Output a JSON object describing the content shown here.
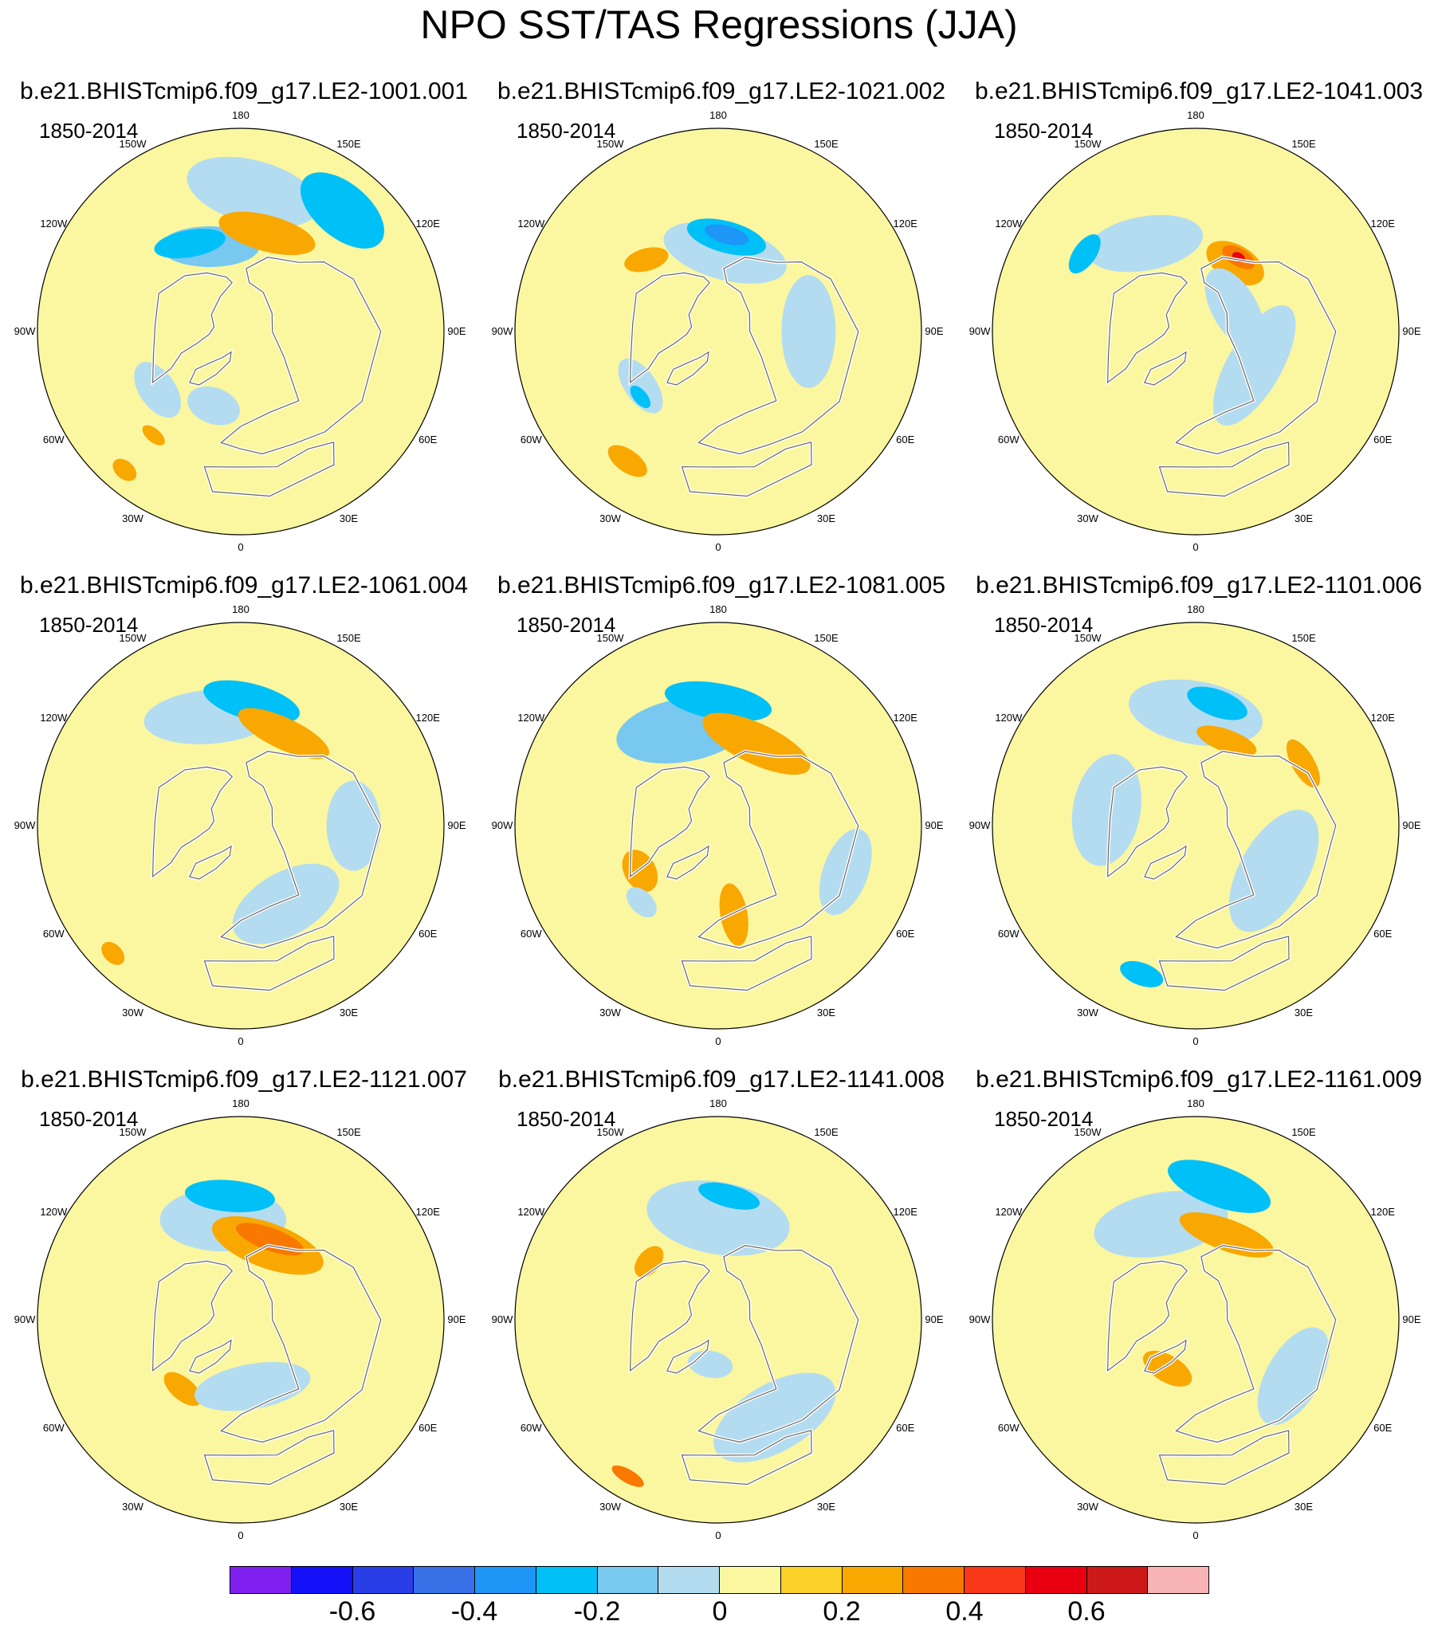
{
  "figure": {
    "title": "NPO SST/TAS Regressions (JJA)"
  },
  "panels": [
    {
      "title": "b.e21.BHISTcmip6.f09_g17.LE2-1001.001",
      "period": "1850-2014",
      "anomalies": [
        {
          "lon": 175,
          "colat": 62,
          "rx": 30,
          "ry": 14,
          "rot": 10,
          "value": -0.1
        },
        {
          "lon": 140,
          "colat": 70,
          "rx": 22,
          "ry": 12,
          "rot": 0,
          "value": -0.25
        },
        {
          "lon": -160,
          "colat": 40,
          "rx": 22,
          "ry": 9,
          "rot": 20,
          "value": -0.2
        },
        {
          "lon": -150,
          "colat": 45,
          "rx": 16,
          "ry": 6,
          "rot": 20,
          "value": -0.3
        },
        {
          "lon": 165,
          "colat": 45,
          "rx": 22,
          "ry": 8,
          "rot": 0,
          "value": 0.2
        },
        {
          "lon": -55,
          "colat": 45,
          "rx": 14,
          "ry": 8,
          "rot": 0,
          "value": -0.1
        },
        {
          "lon": -40,
          "colat": 60,
          "rx": 6,
          "ry": 3,
          "rot": 0,
          "value": 0.2
        },
        {
          "lon": -20,
          "colat": 35,
          "rx": 12,
          "ry": 8,
          "rot": 0,
          "value": -0.1
        },
        {
          "lon": -40,
          "colat": 80,
          "rx": 6,
          "ry": 4,
          "rot": 0,
          "value": 0.2
        }
      ]
    },
    {
      "title": "b.e21.BHISTcmip6.f09_g17.LE2-1021.002",
      "period": "1850-2014",
      "anomalies": [
        {
          "lon": 175,
          "colat": 35,
          "rx": 28,
          "ry": 12,
          "rot": 10,
          "value": -0.1
        },
        {
          "lon": 175,
          "colat": 42,
          "rx": 18,
          "ry": 7,
          "rot": 10,
          "value": -0.25
        },
        {
          "lon": 175,
          "colat": 43,
          "rx": 10,
          "ry": 4,
          "rot": 10,
          "value": -0.4
        },
        {
          "lon": -135,
          "colat": 45,
          "rx": 10,
          "ry": 5,
          "rot": 30,
          "value": 0.2
        },
        {
          "lon": -55,
          "colat": 42,
          "rx": 14,
          "ry": 7,
          "rot": 0,
          "value": -0.1
        },
        {
          "lon": -50,
          "colat": 45,
          "rx": 6,
          "ry": 3,
          "rot": 0,
          "value": -0.25
        },
        {
          "lon": 90,
          "colat": 40,
          "rx": 25,
          "ry": 12,
          "rot": 0,
          "value": -0.1
        },
        {
          "lon": -35,
          "colat": 70,
          "rx": 10,
          "ry": 5,
          "rot": 0,
          "value": 0.2
        }
      ]
    },
    {
      "title": "b.e21.BHISTcmip6.f09_g17.LE2-1041.003",
      "period": "1850-2014",
      "anomalies": [
        {
          "lon": -150,
          "colat": 45,
          "rx": 26,
          "ry": 12,
          "rot": 20,
          "value": -0.1
        },
        {
          "lon": -125,
          "colat": 60,
          "rx": 10,
          "ry": 5,
          "rot": 0,
          "value": -0.3
        },
        {
          "lon": 150,
          "colat": 35,
          "rx": 14,
          "ry": 8,
          "rot": 0,
          "value": 0.2
        },
        {
          "lon": 150,
          "colat": 38,
          "rx": 8,
          "ry": 4,
          "rot": 0,
          "value": 0.35
        },
        {
          "lon": 150,
          "colat": 38,
          "rx": 3,
          "ry": 2,
          "rot": 0,
          "value": 0.5
        },
        {
          "lon": 60,
          "colat": 30,
          "rx": 30,
          "ry": 12,
          "rot": 0,
          "value": -0.1
        },
        {
          "lon": 120,
          "colat": 20,
          "rx": 20,
          "ry": 10,
          "rot": 0,
          "value": -0.1
        }
      ]
    },
    {
      "title": "b.e21.BHISTcmip6.f09_g17.LE2-1061.004",
      "period": "1850-2014",
      "anomalies": [
        {
          "lon": -165,
          "colat": 50,
          "rx": 30,
          "ry": 12,
          "rot": 10,
          "value": -0.1
        },
        {
          "lon": 175,
          "colat": 55,
          "rx": 22,
          "ry": 8,
          "rot": 10,
          "value": -0.25
        },
        {
          "lon": 155,
          "colat": 45,
          "rx": 22,
          "ry": 7,
          "rot": 0,
          "value": 0.2
        },
        {
          "lon": 30,
          "colat": 40,
          "rx": 26,
          "ry": 14,
          "rot": 0,
          "value": -0.1
        },
        {
          "lon": 90,
          "colat": 50,
          "rx": 20,
          "ry": 12,
          "rot": 0,
          "value": -0.1
        },
        {
          "lon": -45,
          "colat": 80,
          "rx": 6,
          "ry": 4,
          "rot": 0,
          "value": 0.2
        }
      ]
    },
    {
      "title": "b.e21.BHISTcmip6.f09_g17.LE2-1081.005",
      "period": "1850-2014",
      "anomalies": [
        {
          "lon": -160,
          "colat": 45,
          "rx": 30,
          "ry": 14,
          "rot": 10,
          "value": -0.2
        },
        {
          "lon": 180,
          "colat": 55,
          "rx": 24,
          "ry": 8,
          "rot": 10,
          "value": -0.3
        },
        {
          "lon": 155,
          "colat": 40,
          "rx": 26,
          "ry": 9,
          "rot": 0,
          "value": 0.2
        },
        {
          "lon": -60,
          "colat": 40,
          "rx": 10,
          "ry": 7,
          "rot": 0,
          "value": 0.25
        },
        {
          "lon": -45,
          "colat": 48,
          "rx": 8,
          "ry": 5,
          "rot": 0,
          "value": -0.1
        },
        {
          "lon": 10,
          "colat": 40,
          "rx": 6,
          "ry": 14,
          "rot": 0,
          "value": 0.2
        },
        {
          "lon": 70,
          "colat": 60,
          "rx": 20,
          "ry": 10,
          "rot": 0,
          "value": -0.1
        }
      ]
    },
    {
      "title": "b.e21.BHISTcmip6.f09_g17.LE2-1101.006",
      "period": "1850-2014",
      "anomalies": [
        {
          "lon": 180,
          "colat": 50,
          "rx": 30,
          "ry": 14,
          "rot": 10,
          "value": -0.1
        },
        {
          "lon": 170,
          "colat": 55,
          "rx": 14,
          "ry": 6,
          "rot": 10,
          "value": -0.25
        },
        {
          "lon": 160,
          "colat": 40,
          "rx": 14,
          "ry": 5,
          "rot": 0,
          "value": 0.2
        },
        {
          "lon": 120,
          "colat": 55,
          "rx": 12,
          "ry": 5,
          "rot": 0,
          "value": 0.2
        },
        {
          "lon": -20,
          "colat": 70,
          "rx": 10,
          "ry": 5,
          "rot": 0,
          "value": -0.25
        },
        {
          "lon": 60,
          "colat": 40,
          "rx": 30,
          "ry": 15,
          "rot": 0,
          "value": -0.1
        },
        {
          "lon": -100,
          "colat": 40,
          "rx": 25,
          "ry": 15,
          "rot": 0,
          "value": -0.1
        }
      ]
    },
    {
      "title": "b.e21.BHISTcmip6.f09_g17.LE2-1121.007",
      "period": "1850-2014",
      "anomalies": [
        {
          "lon": -170,
          "colat": 45,
          "rx": 28,
          "ry": 14,
          "rot": 10,
          "value": -0.1
        },
        {
          "lon": -175,
          "colat": 55,
          "rx": 20,
          "ry": 7,
          "rot": 10,
          "value": -0.25
        },
        {
          "lon": 160,
          "colat": 35,
          "rx": 26,
          "ry": 10,
          "rot": 0,
          "value": 0.2
        },
        {
          "lon": 160,
          "colat": 38,
          "rx": 16,
          "ry": 5,
          "rot": 0,
          "value": 0.3
        },
        {
          "lon": -40,
          "colat": 40,
          "rx": 10,
          "ry": 5,
          "rot": 0,
          "value": 0.2
        },
        {
          "lon": 10,
          "colat": 30,
          "rx": 26,
          "ry": 10,
          "rot": 0,
          "value": -0.1
        }
      ]
    },
    {
      "title": "b.e21.BHISTcmip6.f09_g17.LE2-1141.008",
      "period": "1850-2014",
      "anomalies": [
        {
          "lon": 180,
          "colat": 45,
          "rx": 32,
          "ry": 16,
          "rot": 10,
          "value": -0.1
        },
        {
          "lon": 175,
          "colat": 55,
          "rx": 14,
          "ry": 5,
          "rot": 10,
          "value": -0.25
        },
        {
          "lon": -130,
          "colat": 40,
          "rx": 8,
          "ry": 5,
          "rot": 0,
          "value": 0.2
        },
        {
          "lon": 30,
          "colat": 50,
          "rx": 30,
          "ry": 15,
          "rot": 0,
          "value": -0.1
        },
        {
          "lon": -10,
          "colat": 20,
          "rx": 10,
          "ry": 6,
          "rot": 0,
          "value": -0.1
        },
        {
          "lon": -30,
          "colat": 80,
          "rx": 8,
          "ry": 3,
          "rot": 0,
          "value": 0.3
        }
      ]
    },
    {
      "title": "b.e21.BHISTcmip6.f09_g17.LE2-1161.009",
      "period": "1850-2014",
      "anomalies": [
        {
          "lon": -160,
          "colat": 45,
          "rx": 30,
          "ry": 14,
          "rot": 10,
          "value": -0.1
        },
        {
          "lon": 170,
          "colat": 60,
          "rx": 24,
          "ry": 9,
          "rot": 10,
          "value": -0.25
        },
        {
          "lon": 160,
          "colat": 40,
          "rx": 22,
          "ry": 7,
          "rot": 0,
          "value": 0.2
        },
        {
          "lon": 60,
          "colat": 50,
          "rx": 24,
          "ry": 12,
          "rot": 0,
          "value": -0.1
        },
        {
          "lon": -30,
          "colat": 25,
          "rx": 12,
          "ry": 6,
          "rot": 0,
          "value": 0.2
        }
      ]
    }
  ],
  "map_labels": {
    "lon_180": "180",
    "lon_150e": "150E",
    "lon_120e": "120E",
    "lon_90e": "90E",
    "lon_60e": "60E",
    "lon_30e": "30E",
    "lon_0": "0",
    "lon_30w": "30W",
    "lon_60w": "60W",
    "lon_90w": "90W",
    "lon_120w": "120W",
    "lon_150w": "150W"
  },
  "colorbar": {
    "boxes": [
      "#8020f0",
      "#1410f8",
      "#2a3ee8",
      "#3870e8",
      "#1e96f8",
      "#00c0f8",
      "#78c8f0",
      "#b4dcf0",
      "#fbf7a0",
      "#fbd028",
      "#f8a800",
      "#f87800",
      "#f83818",
      "#e80010",
      "#cc1818",
      "#f8b4b4"
    ],
    "labels": {
      "n06": "-0.6",
      "n04": "-0.4",
      "n02": "-0.2",
      "zero": "0",
      "p02": "0.2",
      "p04": "0.4",
      "p06": "0.6"
    }
  },
  "chart_data": {
    "type": "heatmap",
    "title": "NPO SST/TAS Regressions (JJA)",
    "projection": "North polar stereographic, 0 at bottom, 180 at top",
    "period": "1850-2014",
    "contour_levels": [
      -0.7,
      -0.6,
      -0.5,
      -0.4,
      -0.3,
      -0.2,
      -0.1,
      0,
      0.1,
      0.2,
      0.3,
      0.4,
      0.5,
      0.6,
      0.7
    ],
    "colorbar_ticks": [
      -0.6,
      -0.4,
      -0.2,
      0,
      0.2,
      0.4,
      0.6
    ],
    "panels": [
      "b.e21.BHISTcmip6.f09_g17.LE2-1001.001",
      "b.e21.BHISTcmip6.f09_g17.LE2-1021.002",
      "b.e21.BHISTcmip6.f09_g17.LE2-1041.003",
      "b.e21.BHISTcmip6.f09_g17.LE2-1061.004",
      "b.e21.BHISTcmip6.f09_g17.LE2-1081.005",
      "b.e21.BHISTcmip6.f09_g17.LE2-1101.006",
      "b.e21.BHISTcmip6.f09_g17.LE2-1121.007",
      "b.e21.BHISTcmip6.f09_g17.LE2-1141.008",
      "b.e21.BHISTcmip6.f09_g17.LE2-1161.009"
    ]
  }
}
